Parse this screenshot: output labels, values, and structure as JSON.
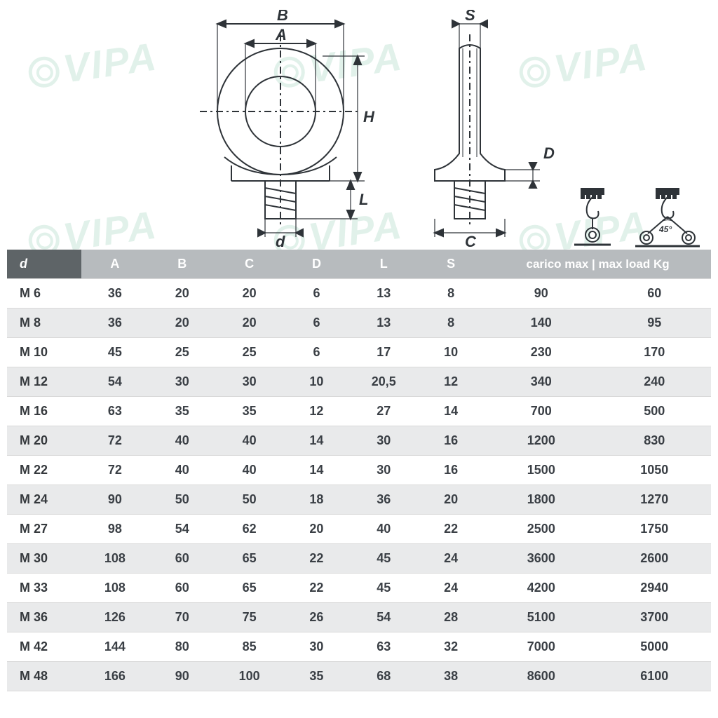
{
  "diagram": {
    "labels": {
      "A": "A",
      "B": "B",
      "C": "C",
      "D": "D",
      "H": "H",
      "L": "L",
      "S": "S",
      "d": "d",
      "angle": "45°"
    },
    "stroke_color": "#2e3338",
    "stroke_width": 2,
    "center_line_dash": "6 4 2 4"
  },
  "watermark_text": "VIPA",
  "table": {
    "type": "table",
    "header_bg": "#b7bbbe",
    "header_first_bg": "#5e6467",
    "header_text_color": "#ffffff",
    "row_even_bg": "#e9eaeb",
    "row_odd_bg": "#ffffff",
    "cell_text_color": "#3a3f45",
    "font_size": 18,
    "columns": [
      "d",
      "A",
      "B",
      "C",
      "D",
      "L",
      "S",
      "carico max | max load Kg"
    ],
    "load_col_span": 2,
    "rows": [
      [
        "M 6",
        "36",
        "20",
        "20",
        "6",
        "13",
        "8",
        "90",
        "60"
      ],
      [
        "M 8",
        "36",
        "20",
        "20",
        "6",
        "13",
        "8",
        "140",
        "95"
      ],
      [
        "M 10",
        "45",
        "25",
        "25",
        "6",
        "17",
        "10",
        "230",
        "170"
      ],
      [
        "M 12",
        "54",
        "30",
        "30",
        "10",
        "20,5",
        "12",
        "340",
        "240"
      ],
      [
        "M 16",
        "63",
        "35",
        "35",
        "12",
        "27",
        "14",
        "700",
        "500"
      ],
      [
        "M 20",
        "72",
        "40",
        "40",
        "14",
        "30",
        "16",
        "1200",
        "830"
      ],
      [
        "M 22",
        "72",
        "40",
        "40",
        "14",
        "30",
        "16",
        "1500",
        "1050"
      ],
      [
        "M 24",
        "90",
        "50",
        "50",
        "18",
        "36",
        "20",
        "1800",
        "1270"
      ],
      [
        "M 27",
        "98",
        "54",
        "62",
        "20",
        "40",
        "22",
        "2500",
        "1750"
      ],
      [
        "M 30",
        "108",
        "60",
        "65",
        "22",
        "45",
        "24",
        "3600",
        "2600"
      ],
      [
        "M 33",
        "108",
        "60",
        "65",
        "22",
        "45",
        "24",
        "4200",
        "2940"
      ],
      [
        "M 36",
        "126",
        "70",
        "75",
        "26",
        "54",
        "28",
        "5100",
        "3700"
      ],
      [
        "M 42",
        "144",
        "80",
        "85",
        "30",
        "63",
        "32",
        "7000",
        "5000"
      ],
      [
        "M 48",
        "166",
        "90",
        "100",
        "35",
        "68",
        "38",
        "8600",
        "6100"
      ]
    ]
  }
}
